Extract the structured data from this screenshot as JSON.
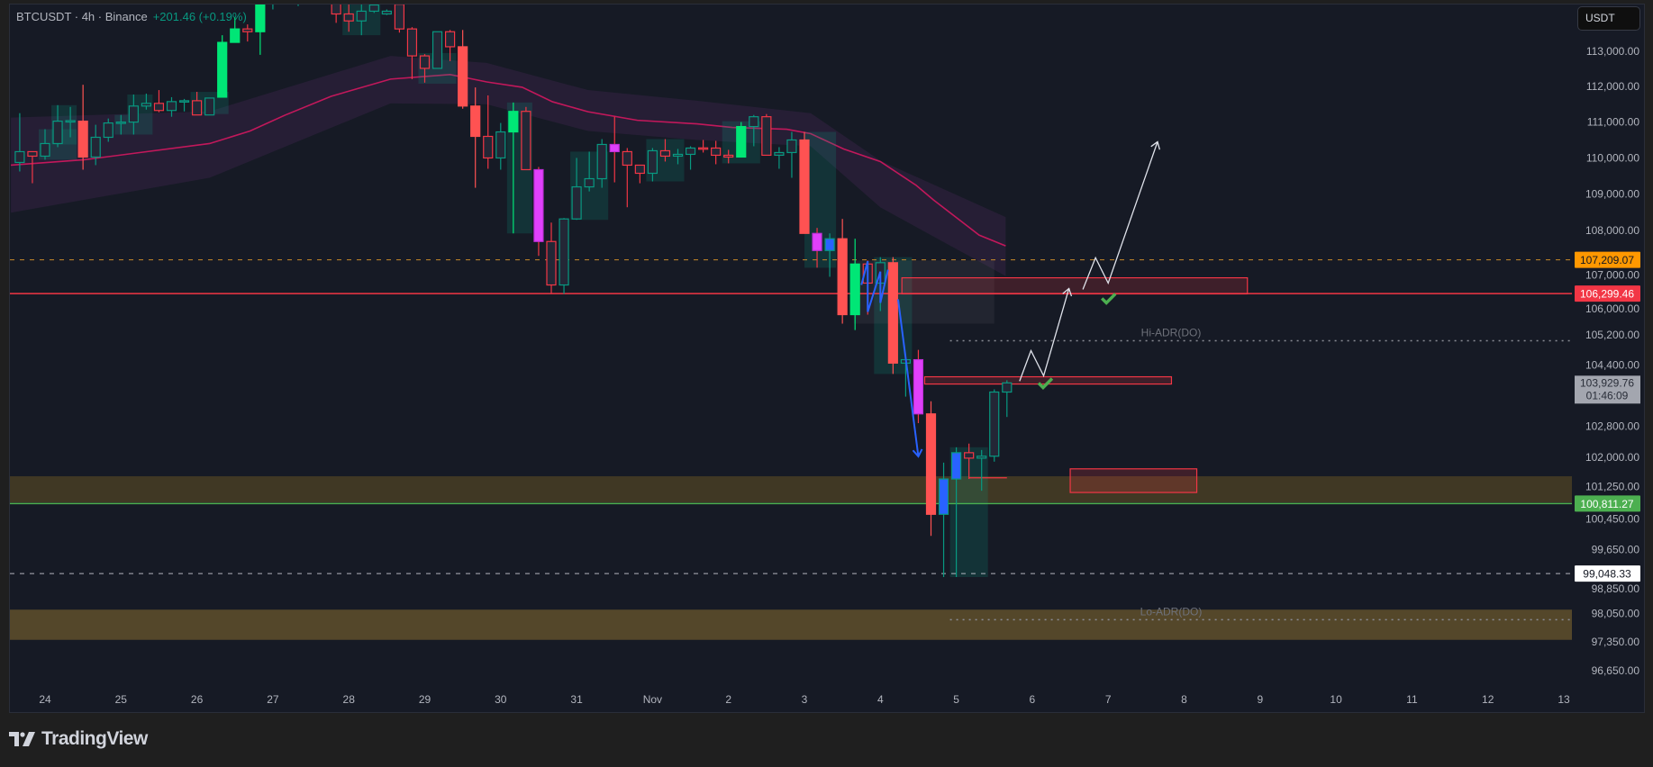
{
  "header": {
    "symbol": "BTCUSDT · 4h · Binance",
    "change": "+201.46 (+0.19%)"
  },
  "currency_button": "USDT",
  "brand": "TradingView",
  "colors": {
    "background": "#161a25",
    "up_hollow": "#089981",
    "down_hollow": "#f23645",
    "up_solid": "#00e676",
    "down_solid": "#ff5252",
    "magenta": "#e040fb",
    "blue": "#2962ff",
    "ema": "#c2185b",
    "orange_level": "#ff9800",
    "red_level": "#f23645",
    "green_level": "#4caf50"
  },
  "chart_data": {
    "type": "candlestick",
    "symbol": "BTCUSDT",
    "interval": "4h",
    "y_scale": "log",
    "start": "10-23 16:00",
    "candle_fields": [
      "open",
      "high",
      "low",
      "close",
      "style"
    ],
    "candles": [
      [
        109875,
        111250,
        109625,
        110175,
        "hollow"
      ],
      [
        110175,
        110175,
        109300,
        110050,
        "hollow"
      ],
      [
        110050,
        110800,
        109950,
        110400,
        "hollow"
      ],
      [
        110400,
        111475,
        110300,
        111025,
        "hollow"
      ],
      [
        111025,
        111425,
        110575,
        111040,
        "hollow"
      ],
      [
        111025,
        112050,
        109675,
        110025,
        "solid"
      ],
      [
        110025,
        110925,
        109800,
        110575,
        "hollow"
      ],
      [
        110575,
        111100,
        110450,
        110975,
        "hollow"
      ],
      [
        110975,
        111200,
        110650,
        111000,
        "hollow"
      ],
      [
        111000,
        111775,
        110650,
        111450,
        "hollow"
      ],
      [
        111450,
        111800,
        111350,
        111525,
        "hollow"
      ],
      [
        111525,
        111900,
        111275,
        111325,
        "hollow"
      ],
      [
        111325,
        111700,
        111150,
        111575,
        "hollow"
      ],
      [
        111575,
        111650,
        111300,
        111600,
        "hollow"
      ],
      [
        111600,
        111850,
        111200,
        111200,
        "hollow"
      ],
      [
        111200,
        111675,
        111200,
        111675,
        "hollow"
      ],
      [
        111700,
        113460,
        111700,
        113255,
        "solid"
      ],
      [
        113255,
        113970,
        113255,
        113640,
        "solid"
      ],
      [
        113640,
        113770,
        113280,
        113560,
        "hollow"
      ],
      [
        113560,
        114600,
        112900,
        114450,
        "solid"
      ],
      [
        114450,
        114900,
        114200,
        114700,
        "hollow"
      ],
      [
        114700,
        115100,
        114400,
        114550,
        "hollow"
      ],
      [
        114550,
        115000,
        114300,
        114850,
        "hollow"
      ],
      [
        114850,
        115200,
        114500,
        114750,
        "hollow"
      ],
      [
        114750,
        114950,
        114400,
        114600,
        "hollow"
      ],
      [
        114600,
        114700,
        113815,
        114070,
        "hollow"
      ],
      [
        114070,
        114350,
        113560,
        113870,
        "hollow"
      ],
      [
        113870,
        114350,
        113460,
        114150,
        "hollow"
      ],
      [
        114150,
        114400,
        114100,
        114330,
        "hollow"
      ],
      [
        114070,
        114200,
        114040,
        114150,
        "hollow"
      ],
      [
        114350,
        114400,
        113535,
        113640,
        "hollow"
      ],
      [
        113640,
        113690,
        112210,
        112870,
        "hollow"
      ],
      [
        112870,
        112920,
        112110,
        112515,
        "hollow"
      ],
      [
        112515,
        113560,
        112515,
        113560,
        "hollow"
      ],
      [
        113560,
        113610,
        112720,
        113130,
        "hollow"
      ],
      [
        113130,
        113610,
        111375,
        111450,
        "solid"
      ],
      [
        111450,
        111975,
        109175,
        110600,
        "solid"
      ],
      [
        110600,
        111750,
        109700,
        110000,
        "hollow"
      ],
      [
        110000,
        110975,
        109675,
        110725,
        "hollow"
      ],
      [
        110725,
        111550,
        107925,
        111300,
        "solid"
      ],
      [
        111300,
        111425,
        109675,
        109675,
        "hollow"
      ],
      [
        109675,
        109750,
        107315,
        107705,
        "magenta"
      ],
      [
        107705,
        108220,
        106290,
        106530,
        "hollow"
      ],
      [
        106530,
        108345,
        106290,
        108320,
        "hollow"
      ],
      [
        108320,
        110000,
        108295,
        109200,
        "hollow"
      ],
      [
        109200,
        110175,
        109075,
        109425,
        "hollow"
      ],
      [
        109425,
        110525,
        109175,
        110375,
        "hollow"
      ],
      [
        110375,
        111150,
        109325,
        110175,
        "magenta"
      ],
      [
        110175,
        110275,
        108640,
        109800,
        "hollow"
      ],
      [
        109800,
        109800,
        109300,
        109575,
        "hollow"
      ],
      [
        109575,
        110275,
        109350,
        110200,
        "hollow"
      ],
      [
        110200,
        110525,
        109900,
        110050,
        "hollow"
      ],
      [
        110050,
        110250,
        109825,
        110100,
        "hollow"
      ],
      [
        110100,
        110325,
        109675,
        110275,
        "hollow"
      ],
      [
        110280,
        110500,
        110150,
        110260,
        "hollow"
      ],
      [
        110275,
        110475,
        109825,
        110075,
        "hollow"
      ],
      [
        110075,
        110225,
        109850,
        110025,
        "hollow"
      ],
      [
        110025,
        111000,
        110025,
        110875,
        "solid"
      ],
      [
        110875,
        111200,
        110325,
        111150,
        "hollow"
      ],
      [
        111150,
        111225,
        110075,
        110075,
        "hollow"
      ],
      [
        110075,
        110300,
        109700,
        110150,
        "hollow"
      ],
      [
        110150,
        110725,
        109450,
        110500,
        "hollow"
      ],
      [
        110500,
        110725,
        107925,
        107925,
        "solid"
      ],
      [
        107925,
        108075,
        106995,
        107460,
        "magenta"
      ],
      [
        107460,
        107925,
        106750,
        107780,
        "blue"
      ],
      [
        107780,
        108320,
        105495,
        105735,
        "solid"
      ],
      [
        105735,
        107780,
        105325,
        107095,
        "solid"
      ],
      [
        107095,
        107190,
        105735,
        106580,
        "hollow"
      ],
      [
        106580,
        107280,
        105830,
        107130,
        "hollow"
      ],
      [
        107130,
        107280,
        104165,
        104450,
        "solid"
      ],
      [
        104450,
        104610,
        103570,
        104540,
        "hollow"
      ],
      [
        104540,
        104800,
        102880,
        103120,
        "magenta"
      ],
      [
        103120,
        103450,
        99995,
        100540,
        "solid"
      ],
      [
        100540,
        101860,
        98960,
        101440,
        "blue"
      ],
      [
        101440,
        102255,
        98960,
        102115,
        "blue"
      ],
      [
        102115,
        102350,
        101440,
        101975,
        "hollow"
      ],
      [
        101975,
        102185,
        101140,
        102025,
        "hollow"
      ],
      [
        102025,
        103760,
        101885,
        103690,
        "hollow"
      ],
      [
        103690,
        104000,
        103040,
        103929.76,
        "hollow"
      ]
    ],
    "ema": [
      [
        "10-23 13:12",
        109800
      ],
      [
        "10-24 12:24",
        109950
      ],
      [
        "10-26 04:00",
        110400
      ],
      [
        "10-26 16:48",
        110750
      ],
      [
        "10-27 04:00",
        111200
      ],
      [
        "10-27 18:24",
        111725
      ],
      [
        "10-28 13:12",
        112210
      ],
      [
        "10-29 08:00",
        112340
      ],
      [
        "10-29 19:36",
        112130
      ],
      [
        "10-30 06:48",
        111980
      ],
      [
        "10-30 16:24",
        111570
      ],
      [
        "10-31 03:36",
        111290
      ],
      [
        "10-31 19:12",
        111050
      ],
      [
        "11-01 14:00",
        110950
      ],
      [
        "11-02 01:12",
        110850
      ],
      [
        "11-02 18:24",
        110800
      ],
      [
        "11-03 02:00",
        110675
      ],
      [
        "11-03 12:24",
        110250
      ],
      [
        "11-04 00:00",
        109900
      ],
      [
        "11-04 11:12",
        109250
      ],
      [
        "11-04 16:48",
        108840
      ],
      [
        "11-05 07:12",
        107880
      ],
      [
        "11-05 15:36",
        107585
      ]
    ],
    "ema_band": [
      [
        "10-23 13:12",
        111125,
        108490
      ],
      [
        "10-26 04:00",
        111300,
        109450
      ],
      [
        "10-28 13:12",
        112870,
        111525
      ],
      [
        "10-29 19:36",
        112670,
        111500
      ],
      [
        "10-31 03:36",
        111900,
        110750
      ],
      [
        "11-01 14:00",
        111600,
        110500
      ],
      [
        "11-03 02:00",
        111250,
        110325
      ],
      [
        "11-04 00:00",
        109925,
        108635
      ],
      [
        "11-05 15:36",
        108370,
        106770
      ]
    ],
    "y_ticks": [
      "113,000.00",
      "112,000.00",
      "111,000.00",
      "110,000.00",
      "109,000.00",
      "108,000.00",
      "107,000.00",
      "106,000.00",
      "105,200.00",
      "104,400.00",
      "102,800.00",
      "102,000.00",
      "101,250.00",
      "100,450.00",
      "99,650.00",
      "98,850.00",
      "98,050.00",
      "97,350.00",
      "96,650.00"
    ],
    "x_ticks": [
      "24",
      "25",
      "26",
      "27",
      "28",
      "29",
      "30",
      "31",
      "Nov",
      "2",
      "3",
      "4",
      "5",
      "6",
      "7",
      "8",
      "9",
      "10",
      "11",
      "12",
      "13"
    ],
    "levels": [
      {
        "price": 107209.07,
        "label": "107,209.07",
        "style": "dashed",
        "color": "#c9892a",
        "bg": "#ff9800",
        "fg": "#131722"
      },
      {
        "price": 106299.46,
        "label": "106,299.46",
        "style": "solid",
        "color": "#f23645",
        "bg": "#f23645",
        "fg": "#ffffff"
      },
      {
        "price": 100811.27,
        "label": "100,811.27",
        "style": "solid",
        "color": "#4caf50",
        "bg": "#4caf50",
        "fg": "#ffffff"
      },
      {
        "price": 99048.33,
        "label": "99,048.33",
        "style": "dashed",
        "color": "#b2b5be",
        "bg": "#ffffff",
        "fg": "#131722"
      }
    ],
    "last_price": {
      "price": 103929.76,
      "label": "103,929.76",
      "countdown": "01:46:09"
    },
    "adr": [
      {
        "label": "Hi-ADR(DO)",
        "price": 105040,
        "from": "11-05 00:00"
      },
      {
        "label": "Lo-ADR(DO)",
        "price": 97900,
        "from": "11-05 00:00"
      }
    ],
    "supply_demand_bands": [
      {
        "top": 101510,
        "bottom": 100840
      },
      {
        "top": 98150,
        "bottom": 97405
      }
    ],
    "fvg_zones": [
      {
        "from": "10-24 00:00",
        "to": "10-24 08:00",
        "top": 110800,
        "bottom": 109950
      },
      {
        "from": "10-24 04:00",
        "to": "10-24 08:00",
        "top": 111475,
        "bottom": 110375
      },
      {
        "from": "10-25 00:00",
        "to": "10-25 08:00",
        "top": 111200,
        "bottom": 110650
      },
      {
        "from": "10-25 04:00",
        "to": "10-25 08:00",
        "top": 111775,
        "bottom": 111200
      },
      {
        "from": "10-26 00:00",
        "to": "10-26 08:00",
        "top": 111850,
        "bottom": 111225
      },
      {
        "from": "10-28 00:00",
        "to": "10-28 08:00",
        "top": 114350,
        "bottom": 113460
      },
      {
        "from": "10-29 00:00",
        "to": "10-29 08:00",
        "top": 112950,
        "bottom": 112080
      },
      {
        "from": "10-30 04:00",
        "to": "10-30 08:00",
        "top": 111550,
        "bottom": 107925
      },
      {
        "from": "10-31 00:00",
        "to": "10-31 08:00",
        "top": 110175,
        "bottom": 108295
      },
      {
        "from": "11-01 00:00",
        "to": "11-01 08:00",
        "top": 110525,
        "bottom": 109350
      },
      {
        "from": "11-02 00:00",
        "to": "11-02 08:00",
        "top": 111025,
        "bottom": 109850
      },
      {
        "from": "11-03 02:00",
        "to": "11-03 08:00",
        "top": 110725,
        "bottom": 106995
      },
      {
        "from": "11-04 00:00",
        "to": "11-04 08:00",
        "top": 107280,
        "bottom": 104165
      },
      {
        "from": "11-05 00:00",
        "to": "11-05 08:00",
        "top": 102255,
        "bottom": 98960
      }
    ],
    "range_box": {
      "from": "11-03 15:36",
      "to": "11-05 12:00",
      "top": 107190,
      "bottom": 105495
    },
    "red_boxes": [
      {
        "from": "11-04 06:48",
        "to": "11-08 20:00",
        "top": 106723,
        "bottom": 106290
      },
      {
        "from": "11-04 14:00",
        "to": "11-07 20:00",
        "top": 104090,
        "bottom": 103900
      },
      {
        "from": "11-06 12:00",
        "to": "11-08 04:00",
        "top": 101700,
        "bottom": 101095
      }
    ],
    "red_segment": {
      "from": "11-05 04:00",
      "to": "11-05 16:00",
      "price": 101470
    },
    "drawings": {
      "blue_zigzag": [
        [
          "11-03 18:00",
          106530
        ],
        [
          "11-03 20:00",
          107170
        ],
        [
          "11-03 20:00",
          105810
        ],
        [
          "11-04 00:00",
          106890
        ],
        [
          "11-04 00:00",
          106050
        ],
        [
          "11-04 02:24",
          106940
        ]
      ],
      "blue_arrow": [
        [
          "11-04 05:36",
          106145
        ],
        [
          "11-04 12:00",
          102020
        ]
      ],
      "white_path_1": [
        [
          "11-05 20:00",
          103975
        ],
        [
          "11-05 23:36",
          104780
        ],
        [
          "11-06 03:36",
          104115
        ],
        [
          "11-06 11:36",
          106435
        ]
      ],
      "white_path_2": [
        [
          "11-06 16:00",
          106410
        ],
        [
          "11-06 20:00",
          107265
        ],
        [
          "11-07 00:00",
          106580
        ],
        [
          "11-07 15:36",
          110450
        ]
      ],
      "checkmarks": [
        [
          "11-06 04:00",
          103925
        ],
        [
          "11-07 00:00",
          106170
        ]
      ]
    }
  }
}
